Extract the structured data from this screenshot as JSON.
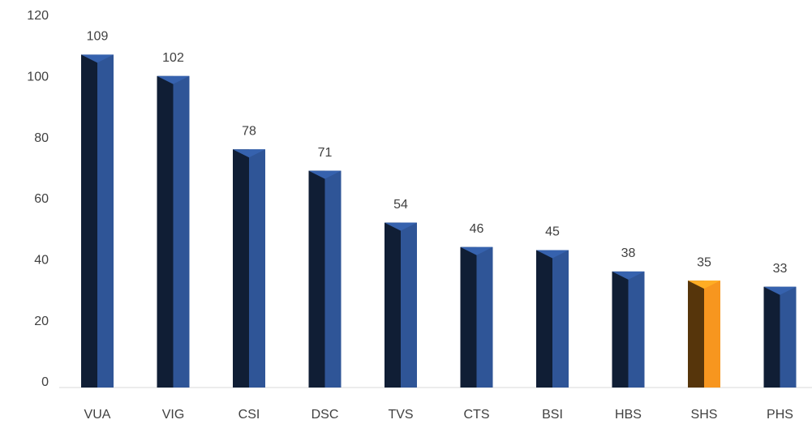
{
  "chart_data": {
    "type": "bar",
    "categories": [
      "VUA",
      "VIG",
      "CSI",
      "DSC",
      "TVS",
      "CTS",
      "BSI",
      "HBS",
      "SHS",
      "PHS"
    ],
    "values": [
      109,
      102,
      78,
      71,
      54,
      46,
      45,
      38,
      35,
      33
    ],
    "colors": [
      "#2f5597",
      "#2f5597",
      "#2f5597",
      "#2f5597",
      "#2f5597",
      "#2f5597",
      "#2f5597",
      "#2f5597",
      "#f7961f",
      "#2f5597"
    ],
    "ylim": [
      0,
      120
    ],
    "yticks": [
      0,
      20,
      40,
      60,
      80,
      100,
      120
    ],
    "grid": false
  }
}
